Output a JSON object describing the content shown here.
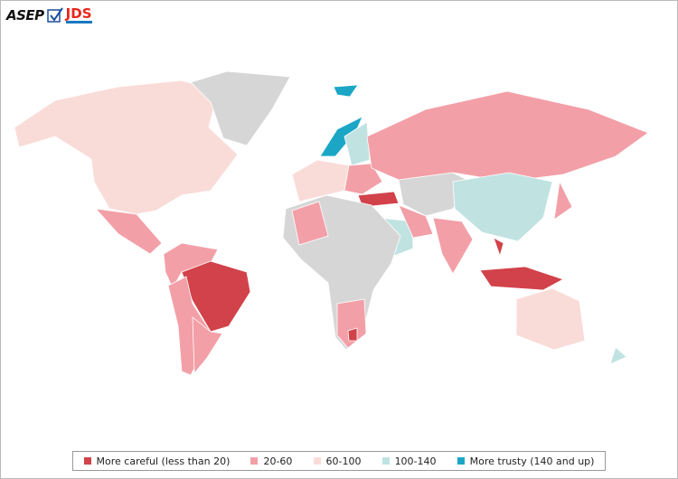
{
  "logo": {
    "left": "ASEP",
    "right": "JDS"
  },
  "legend": {
    "items": [
      {
        "label": "More careful (less than 20)",
        "color": "#d2424a"
      },
      {
        "label": "20-60",
        "color": "#f39fa7"
      },
      {
        "label": "60-100",
        "color": "#f9dcd8"
      },
      {
        "label": "100-140",
        "color": "#c0e3e2"
      },
      {
        "label": "More trusty (140 and up)",
        "color": "#1ba6c6"
      }
    ]
  }
}
